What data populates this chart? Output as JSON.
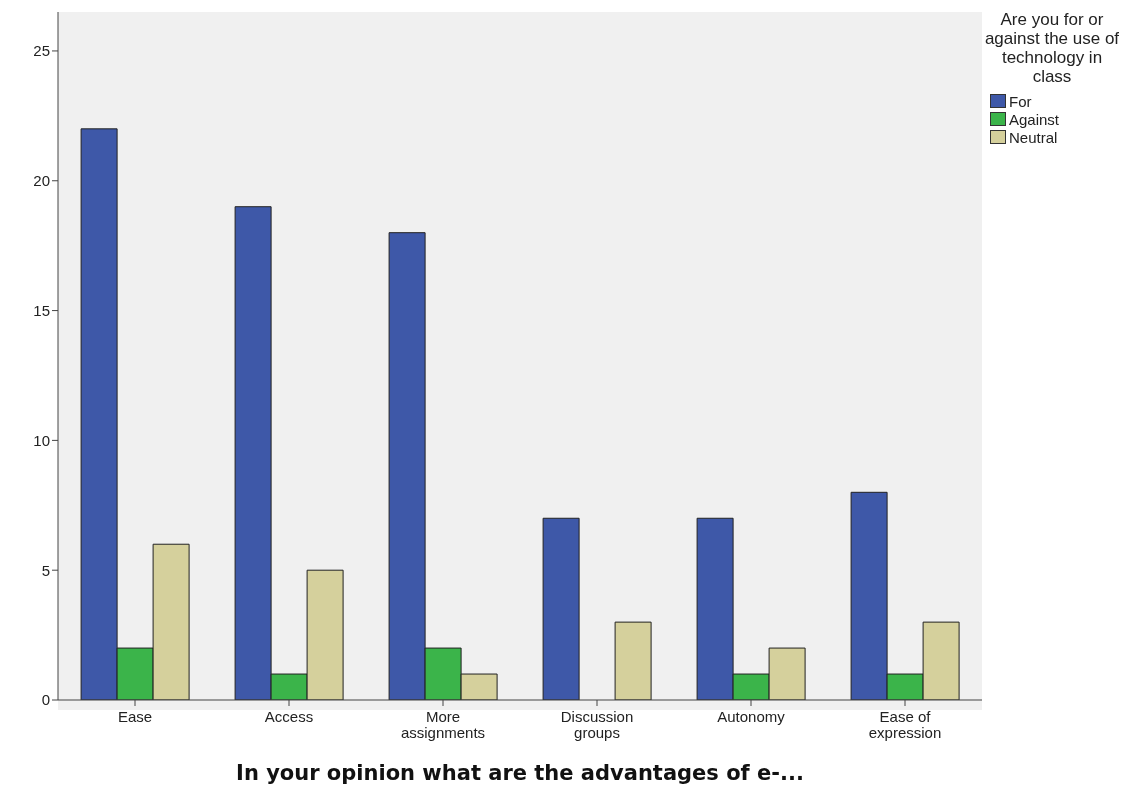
{
  "chart_data": {
    "type": "bar",
    "xlabel": "In your opinion what are the advantages of e-...",
    "legend_title": "Are you for or against the use of technology in class",
    "categories": [
      "Ease",
      "Access",
      "More assignments",
      "Discussion groups",
      "Autonomy",
      "Ease of expression"
    ],
    "series": [
      {
        "name": "For",
        "color": "#3e58a8",
        "values": [
          22,
          19,
          18,
          7,
          7,
          8
        ]
      },
      {
        "name": "Against",
        "color": "#3bb44a",
        "values": [
          2,
          1,
          2,
          0,
          1,
          1
        ]
      },
      {
        "name": "Neutral",
        "color": "#d5d09c",
        "values": [
          6,
          5,
          1,
          3,
          2,
          3
        ]
      }
    ],
    "ylim": [
      0,
      26.5
    ],
    "yticks": [
      0,
      5,
      10,
      15,
      20,
      25
    ],
    "grid": false,
    "legend": "right"
  }
}
